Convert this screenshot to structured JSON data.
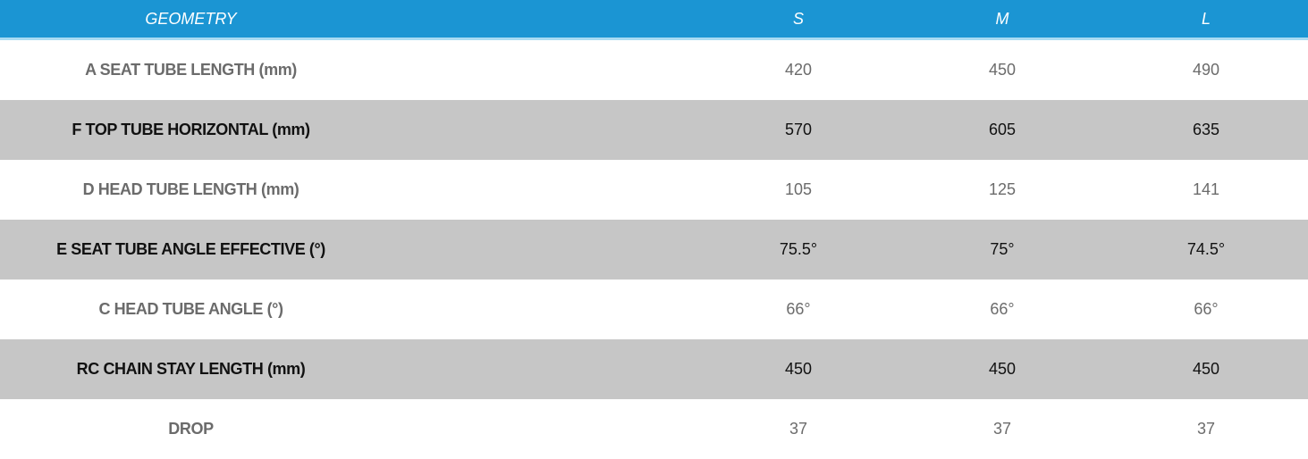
{
  "table": {
    "header": [
      "GEOMETRY",
      "S",
      "M",
      "L"
    ],
    "rows": [
      [
        "A SEAT TUBE LENGTH (mm)",
        "420",
        "450",
        "490"
      ],
      [
        "F TOP TUBE HORIZONTAL (mm)",
        "570",
        "605",
        "635"
      ],
      [
        "D HEAD TUBE LENGTH (mm)",
        "105",
        "125",
        "141"
      ],
      [
        "E SEAT TUBE ANGLE EFFECTIVE (°)",
        "75.5°",
        "75°",
        "74.5°"
      ],
      [
        "C HEAD TUBE ANGLE (°)",
        "66°",
        "66°",
        "66°"
      ],
      [
        "RC CHAIN STAY LENGTH (mm)",
        "450",
        "450",
        "450"
      ],
      [
        "DROP",
        "37",
        "37",
        "37"
      ]
    ]
  }
}
